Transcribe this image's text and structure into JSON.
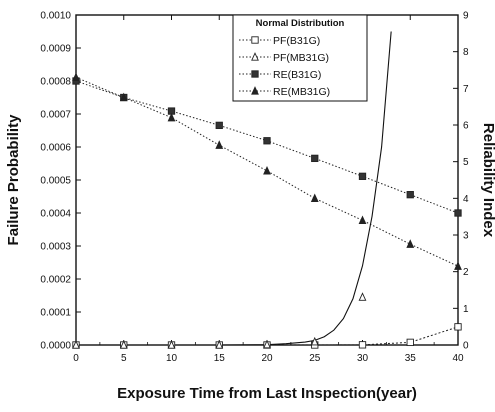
{
  "chart_data": {
    "type": "line",
    "title": "",
    "xlabel": "Exposure Time from Last Inspection(year)",
    "ylabel_left": "Failure Probability",
    "ylabel_right": "Reliability Index",
    "xlim": [
      0,
      40
    ],
    "ylim_left": [
      0,
      0.001
    ],
    "ylim_right": [
      0,
      9
    ],
    "x_ticks": [
      "0",
      "5",
      "10",
      "15",
      "20",
      "25",
      "30",
      "35",
      "40"
    ],
    "y_left_ticks": [
      "0.0000",
      "0.0001",
      "0.0002",
      "0.0003",
      "0.0004",
      "0.0005",
      "0.0006",
      "0.0007",
      "0.0008",
      "0.0009",
      "0.0010"
    ],
    "y_right_ticks": [
      "0",
      "1",
      "2",
      "3",
      "4",
      "5",
      "6",
      "7",
      "8",
      "9"
    ],
    "grid": false,
    "legend": {
      "title": "Normal Distribution",
      "placement": "top-right"
    },
    "series": [
      {
        "name": "PF(B31G)",
        "axis": "left",
        "marker": "open-square",
        "x": [
          0,
          5,
          10,
          15,
          20,
          25,
          30,
          35,
          40
        ],
        "y": [
          0.0,
          0.0,
          0.0,
          0.0,
          0.0,
          0.0,
          5e-07,
          8e-06,
          5.5e-05
        ]
      },
      {
        "name": "PF(MB31G)",
        "axis": "left",
        "marker": "open-triangle",
        "x": [
          0,
          5,
          10,
          15,
          20,
          25,
          30
        ],
        "y": [
          0.0,
          0.0,
          0.0,
          0.0,
          1e-06,
          1e-05,
          0.000145
        ]
      },
      {
        "name": "RE(B31G)",
        "axis": "right",
        "marker": "filled-square",
        "x": [
          0,
          5,
          10,
          15,
          20,
          25,
          30,
          35,
          40
        ],
        "y": [
          7.2,
          6.75,
          6.38,
          5.99,
          5.57,
          5.09,
          4.6,
          4.1,
          3.6
        ]
      },
      {
        "name": "RE(MB31G)",
        "axis": "right",
        "marker": "filled-triangle",
        "x": [
          0,
          5,
          10,
          15,
          20,
          25,
          30,
          35,
          40
        ],
        "y": [
          7.3,
          6.75,
          6.2,
          5.45,
          4.75,
          4.0,
          3.4,
          2.75,
          2.15
        ]
      }
    ],
    "fitted_curve": {
      "series": "PF(MB31G)",
      "x": [
        0,
        5,
        10,
        15,
        20,
        22,
        24,
        25,
        26,
        27,
        28,
        29,
        30,
        31,
        32,
        33
      ],
      "y": [
        0.0,
        0.0,
        0.0,
        0.0,
        1e-06,
        4e-06,
        9e-06,
        1.4e-05,
        2.5e-05,
        4.5e-05,
        8e-05,
        0.00014,
        0.00024,
        0.00039,
        0.0006,
        0.00095
      ]
    }
  }
}
